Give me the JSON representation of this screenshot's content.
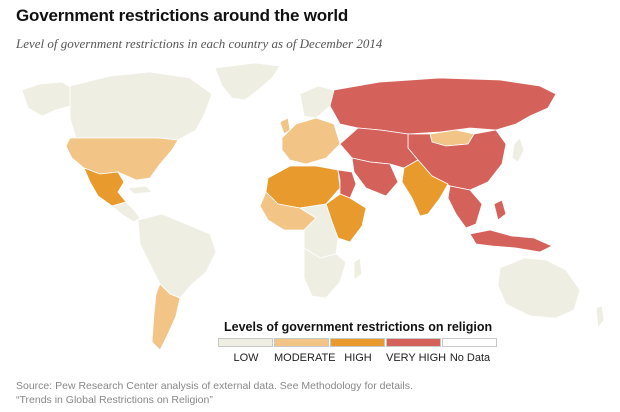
{
  "header": {
    "title": "Government restrictions around the world",
    "subtitle": "Level of government restrictions in each country as of December 2014"
  },
  "legend": {
    "title": "Levels of government restrictions on religion",
    "items": [
      {
        "label": "LOW",
        "color": "#efeee3"
      },
      {
        "label": "MODERATE",
        "color": "#f2c486"
      },
      {
        "label": "HIGH",
        "color": "#e89b2c"
      },
      {
        "label": "VERY HIGH",
        "color": "#d5625a"
      },
      {
        "label": "No Data",
        "color": "#ffffff"
      }
    ]
  },
  "source": {
    "line1": "Source: Pew Research Center analysis of external data. See Methodology for details.",
    "line2": "“Trends in Global Restrictions on Religion”"
  },
  "map": {
    "ocean": "#ffffff",
    "border": "#ffffff",
    "regions": [
      {
        "name": "canada",
        "level": "LOW"
      },
      {
        "name": "alaska",
        "level": "LOW"
      },
      {
        "name": "greenland",
        "level": "LOW"
      },
      {
        "name": "united-states",
        "level": "MODERATE"
      },
      {
        "name": "mexico",
        "level": "HIGH"
      },
      {
        "name": "central-america",
        "level": "LOW"
      },
      {
        "name": "south-america",
        "level": "LOW"
      },
      {
        "name": "argentina",
        "level": "MODERATE"
      },
      {
        "name": "western-europe",
        "level": "MODERATE"
      },
      {
        "name": "scandinavia",
        "level": "LOW"
      },
      {
        "name": "russia",
        "level": "VERY HIGH"
      },
      {
        "name": "china",
        "level": "VERY HIGH"
      },
      {
        "name": "mongolia",
        "level": "MODERATE"
      },
      {
        "name": "north-africa",
        "level": "HIGH"
      },
      {
        "name": "egypt",
        "level": "VERY HIGH"
      },
      {
        "name": "middle-east",
        "level": "VERY HIGH"
      },
      {
        "name": "saudi-arabia",
        "level": "VERY HIGH"
      },
      {
        "name": "india",
        "level": "HIGH"
      },
      {
        "name": "southeast-asia",
        "level": "VERY HIGH"
      },
      {
        "name": "indonesia",
        "level": "VERY HIGH"
      },
      {
        "name": "west-africa",
        "level": "MODERATE"
      },
      {
        "name": "central-africa",
        "level": "LOW"
      },
      {
        "name": "east-africa",
        "level": "HIGH"
      },
      {
        "name": "southern-africa",
        "level": "LOW"
      },
      {
        "name": "australia",
        "level": "LOW"
      },
      {
        "name": "japan",
        "level": "LOW"
      },
      {
        "name": "uk",
        "level": "MODERATE"
      }
    ]
  }
}
